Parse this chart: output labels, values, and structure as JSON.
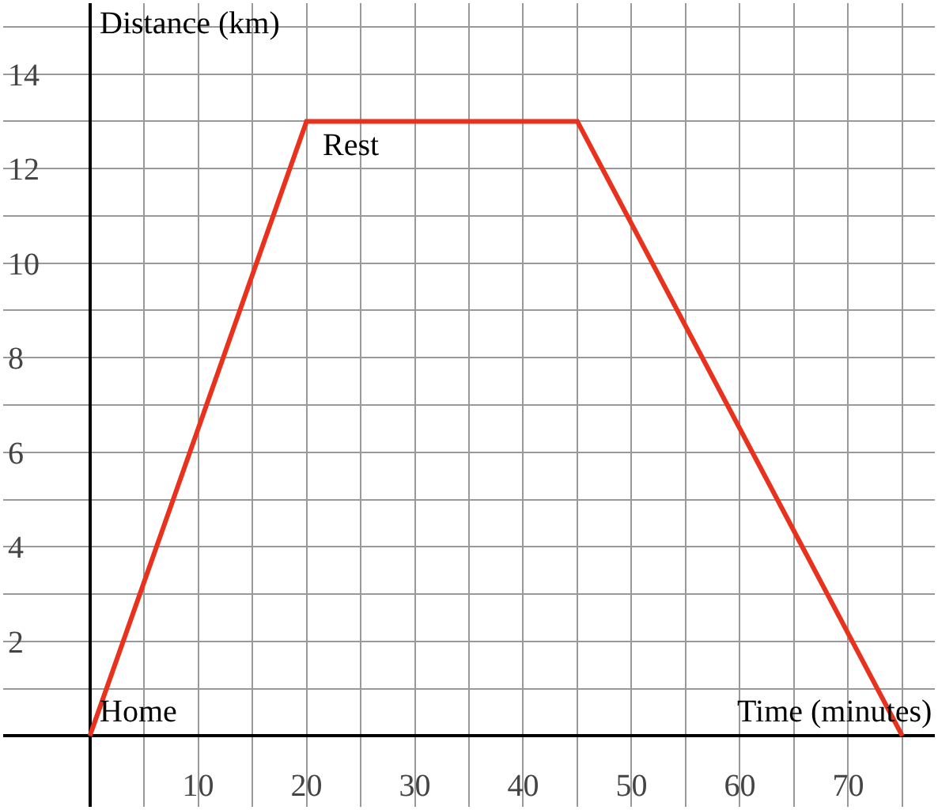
{
  "chart_data": {
    "type": "line",
    "xlabel": "Time (minutes)",
    "ylabel": "Distance (km)",
    "x": [
      0,
      20,
      45,
      75
    ],
    "series": [
      {
        "color": "#e8321e",
        "values": [
          0,
          13,
          13,
          0
        ]
      }
    ],
    "annotations": [
      {
        "text": "Home",
        "x": 0,
        "y": 0
      },
      {
        "text": "Rest",
        "x": 20,
        "y": 13
      }
    ],
    "xlim": [
      -8,
      78
    ],
    "ylim": [
      -1.5,
      15.5
    ],
    "xticks": [
      {
        "value": 0,
        "label": null
      },
      {
        "value": 5,
        "label": null
      },
      10,
      {
        "value": 15,
        "label": null
      },
      20,
      {
        "value": 25,
        "label": null
      },
      30,
      {
        "value": 35,
        "label": null
      },
      40,
      {
        "value": 45,
        "label": null
      },
      50,
      {
        "value": 55,
        "label": null
      },
      60,
      {
        "value": 65,
        "label": null
      },
      70,
      {
        "value": 75,
        "label": null
      }
    ],
    "yticks": [
      {
        "value": 0,
        "label": null
      },
      {
        "value": 1,
        "label": null
      },
      2,
      {
        "value": 3,
        "label": null
      },
      4,
      {
        "value": 5,
        "label": null
      },
      6,
      {
        "value": 7,
        "label": null
      },
      8,
      {
        "value": 9,
        "label": null
      },
      10,
      {
        "value": 11,
        "label": null
      },
      12,
      {
        "value": 13,
        "label": null
      },
      14,
      {
        "value": 15,
        "label": null
      }
    ],
    "grid": true,
    "marker": "none",
    "line_style": "solid"
  }
}
